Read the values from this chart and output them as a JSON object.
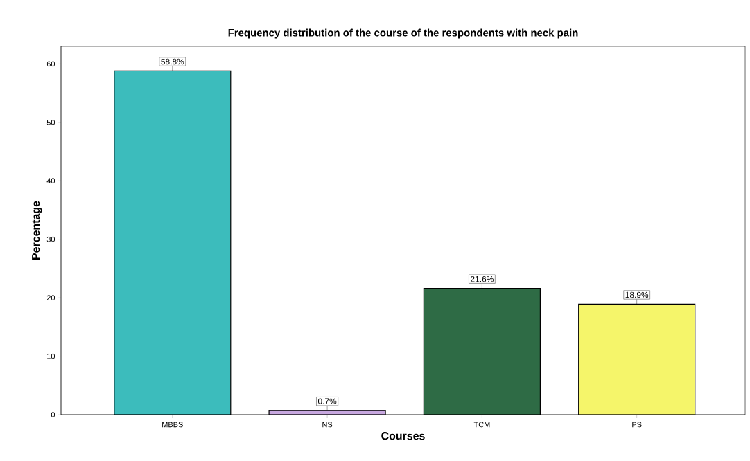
{
  "chart_data": {
    "type": "bar",
    "title": "Frequency distribution of the course of the respondents with neck pain",
    "xlabel": "Courses",
    "ylabel": "Percentage",
    "categories": [
      "MBBS",
      "NS",
      "TCM",
      "PS"
    ],
    "values": [
      58.8,
      0.7,
      21.6,
      18.9
    ],
    "colors": [
      "#3cbcbc",
      "#c8a8e0",
      "#2e6b45",
      "#f5f56a"
    ],
    "value_labels": [
      "58.8%",
      "0.7%",
      "21.6%",
      "18.9%"
    ],
    "ylim": [
      0,
      63
    ],
    "yticks": [
      0,
      10,
      20,
      30,
      40,
      50,
      60
    ],
    "grid": false
  }
}
